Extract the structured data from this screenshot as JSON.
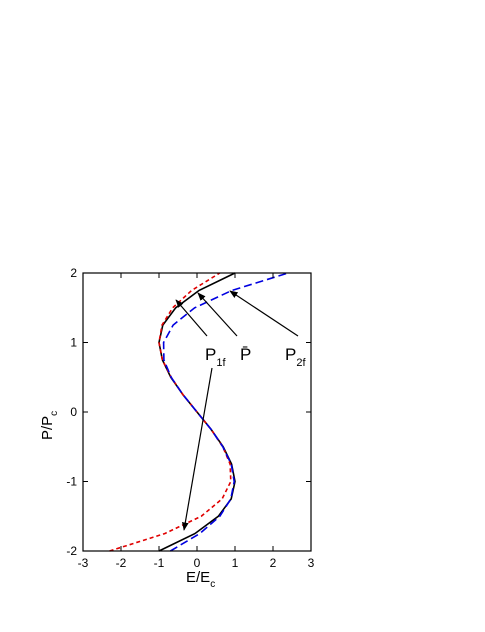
{
  "chart_data": {
    "type": "line",
    "xlabel": {
      "text": "E/E",
      "sub": "c"
    },
    "ylabel": {
      "text": "P/P",
      "sub": "c"
    },
    "y": [
      -2,
      -1.75,
      -1.5,
      -1.25,
      -1,
      -0.75,
      -0.5,
      -0.25,
      0,
      0.25,
      0.5,
      0.75,
      1,
      1.25,
      1.5,
      1.75,
      2
    ],
    "series": [
      {
        "color": "#000000",
        "dash": "none",
        "x": [
          -1,
          -0.055,
          0.56,
          0.9,
          1,
          0.91,
          0.69,
          0.37,
          0,
          -0.37,
          -0.69,
          -0.91,
          -1,
          -0.9,
          -0.56,
          0.055,
          1
        ]
      },
      {
        "color": "#e00000",
        "dash": "4,3",
        "x": [
          -2.3,
          -0.85,
          0.11,
          0.66,
          0.89,
          0.87,
          0.68,
          0.37,
          0,
          -0.37,
          -0.68,
          -0.91,
          -1,
          -0.92,
          -0.64,
          -0.14,
          0.6
        ]
      },
      {
        "color": "#0000e0",
        "dash": "8,4",
        "x": [
          -0.7,
          0.07,
          0.6,
          0.89,
          0.98,
          0.9,
          0.68,
          0.37,
          0,
          -0.37,
          -0.68,
          -0.87,
          -0.88,
          -0.63,
          -0.06,
          0.92,
          2.4
        ]
      }
    ],
    "annotations": [
      {
        "text": "P",
        "sub": "1f"
      },
      {
        "text": "P̄"
      },
      {
        "text": "P",
        "sub": "2f"
      }
    ],
    "xlim": [
      -3,
      3
    ],
    "xticks": [
      -3,
      -2,
      -1,
      0,
      1,
      2,
      3
    ],
    "ylim": [
      -2,
      2
    ],
    "yticks": [
      -2,
      -1,
      0,
      1,
      2
    ]
  }
}
